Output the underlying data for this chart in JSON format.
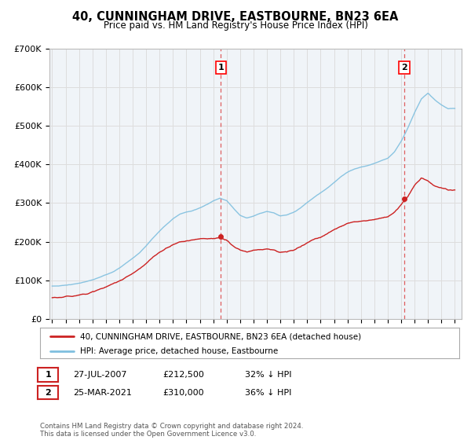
{
  "title": "40, CUNNINGHAM DRIVE, EASTBOURNE, BN23 6EA",
  "subtitle": "Price paid vs. HM Land Registry's House Price Index (HPI)",
  "hpi_label": "HPI: Average price, detached house, Eastbourne",
  "property_label": "40, CUNNINGHAM DRIVE, EASTBOURNE, BN23 6EA (detached house)",
  "footer": "Contains HM Land Registry data © Crown copyright and database right 2024.\nThis data is licensed under the Open Government Licence v3.0.",
  "sale1_date": "27-JUL-2007",
  "sale1_price": "£212,500",
  "sale1_hpi": "32% ↓ HPI",
  "sale2_date": "25-MAR-2021",
  "sale2_price": "£310,000",
  "sale2_hpi": "36% ↓ HPI",
  "vline1_x": 2007.57,
  "vline2_x": 2021.23,
  "ylim": [
    0,
    700000
  ],
  "xlim": [
    1994.8,
    2025.5
  ],
  "hpi_color": "#7fbfdf",
  "property_color": "#cc2222",
  "vline_color": "#dd4444",
  "grid_color": "#dddddd",
  "background_color": "#f0f4f8",
  "plot_bg_color": "#f0f4f8",
  "sale_dot1_x": 2007.57,
  "sale_dot1_y": 212500,
  "sale_dot2_x": 2021.23,
  "sale_dot2_y": 310000,
  "hpi_years": [
    1995,
    1995.5,
    1996,
    1996.5,
    1997,
    1997.5,
    1998,
    1998.5,
    1999,
    1999.5,
    2000,
    2000.5,
    2001,
    2001.5,
    2002,
    2002.5,
    2003,
    2003.5,
    2004,
    2004.5,
    2005,
    2005.5,
    2006,
    2006.5,
    2007,
    2007.5,
    2008,
    2008.5,
    2009,
    2009.5,
    2010,
    2010.5,
    2011,
    2011.5,
    2012,
    2012.5,
    2013,
    2013.5,
    2014,
    2014.5,
    2015,
    2015.5,
    2016,
    2016.5,
    2017,
    2017.5,
    2018,
    2018.5,
    2019,
    2019.5,
    2020,
    2020.5,
    2021,
    2021.5,
    2022,
    2022.5,
    2023,
    2023.5,
    2024,
    2024.5,
    2025
  ],
  "hpi_vals": [
    85000,
    85500,
    88000,
    90000,
    93000,
    97000,
    101000,
    107000,
    114000,
    122000,
    132000,
    145000,
    158000,
    172000,
    190000,
    210000,
    228000,
    245000,
    260000,
    272000,
    278000,
    282000,
    289000,
    298000,
    308000,
    315000,
    310000,
    290000,
    272000,
    265000,
    270000,
    278000,
    283000,
    280000,
    272000,
    274000,
    280000,
    291000,
    305000,
    318000,
    330000,
    343000,
    358000,
    372000,
    385000,
    393000,
    398000,
    402000,
    408000,
    415000,
    422000,
    438000,
    465000,
    500000,
    540000,
    575000,
    590000,
    572000,
    558000,
    548000,
    548000
  ],
  "prop_years": [
    1995,
    1995.5,
    1996,
    1996.5,
    1997,
    1997.5,
    1998,
    1998.5,
    1999,
    1999.5,
    2000,
    2000.5,
    2001,
    2001.5,
    2002,
    2002.5,
    2003,
    2003.5,
    2004,
    2004.5,
    2005,
    2005.5,
    2006,
    2006.5,
    2007,
    2007.5,
    2008,
    2008.5,
    2009,
    2009.5,
    2010,
    2010.5,
    2011,
    2011.5,
    2012,
    2012.5,
    2013,
    2013.5,
    2014,
    2014.5,
    2015,
    2015.5,
    2016,
    2016.5,
    2017,
    2017.5,
    2018,
    2018.5,
    2019,
    2019.5,
    2020,
    2020.5,
    2021,
    2021.5,
    2022,
    2022.5,
    2023,
    2023.5,
    2024,
    2024.5,
    2025
  ],
  "prop_vals": [
    55000,
    55500,
    57000,
    59000,
    63000,
    67000,
    72000,
    78000,
    84000,
    91000,
    100000,
    110000,
    120000,
    132000,
    145000,
    160000,
    172000,
    183000,
    193000,
    200000,
    203000,
    205000,
    209000,
    211000,
    212000,
    212500,
    205000,
    190000,
    178000,
    173000,
    177000,
    180000,
    183000,
    181000,
    175000,
    176000,
    180000,
    188000,
    198000,
    208000,
    215000,
    224000,
    233000,
    243000,
    252000,
    257000,
    260000,
    262000,
    265000,
    269000,
    274000,
    285000,
    305000,
    325000,
    355000,
    375000,
    368000,
    355000,
    350000,
    345000,
    345000
  ]
}
